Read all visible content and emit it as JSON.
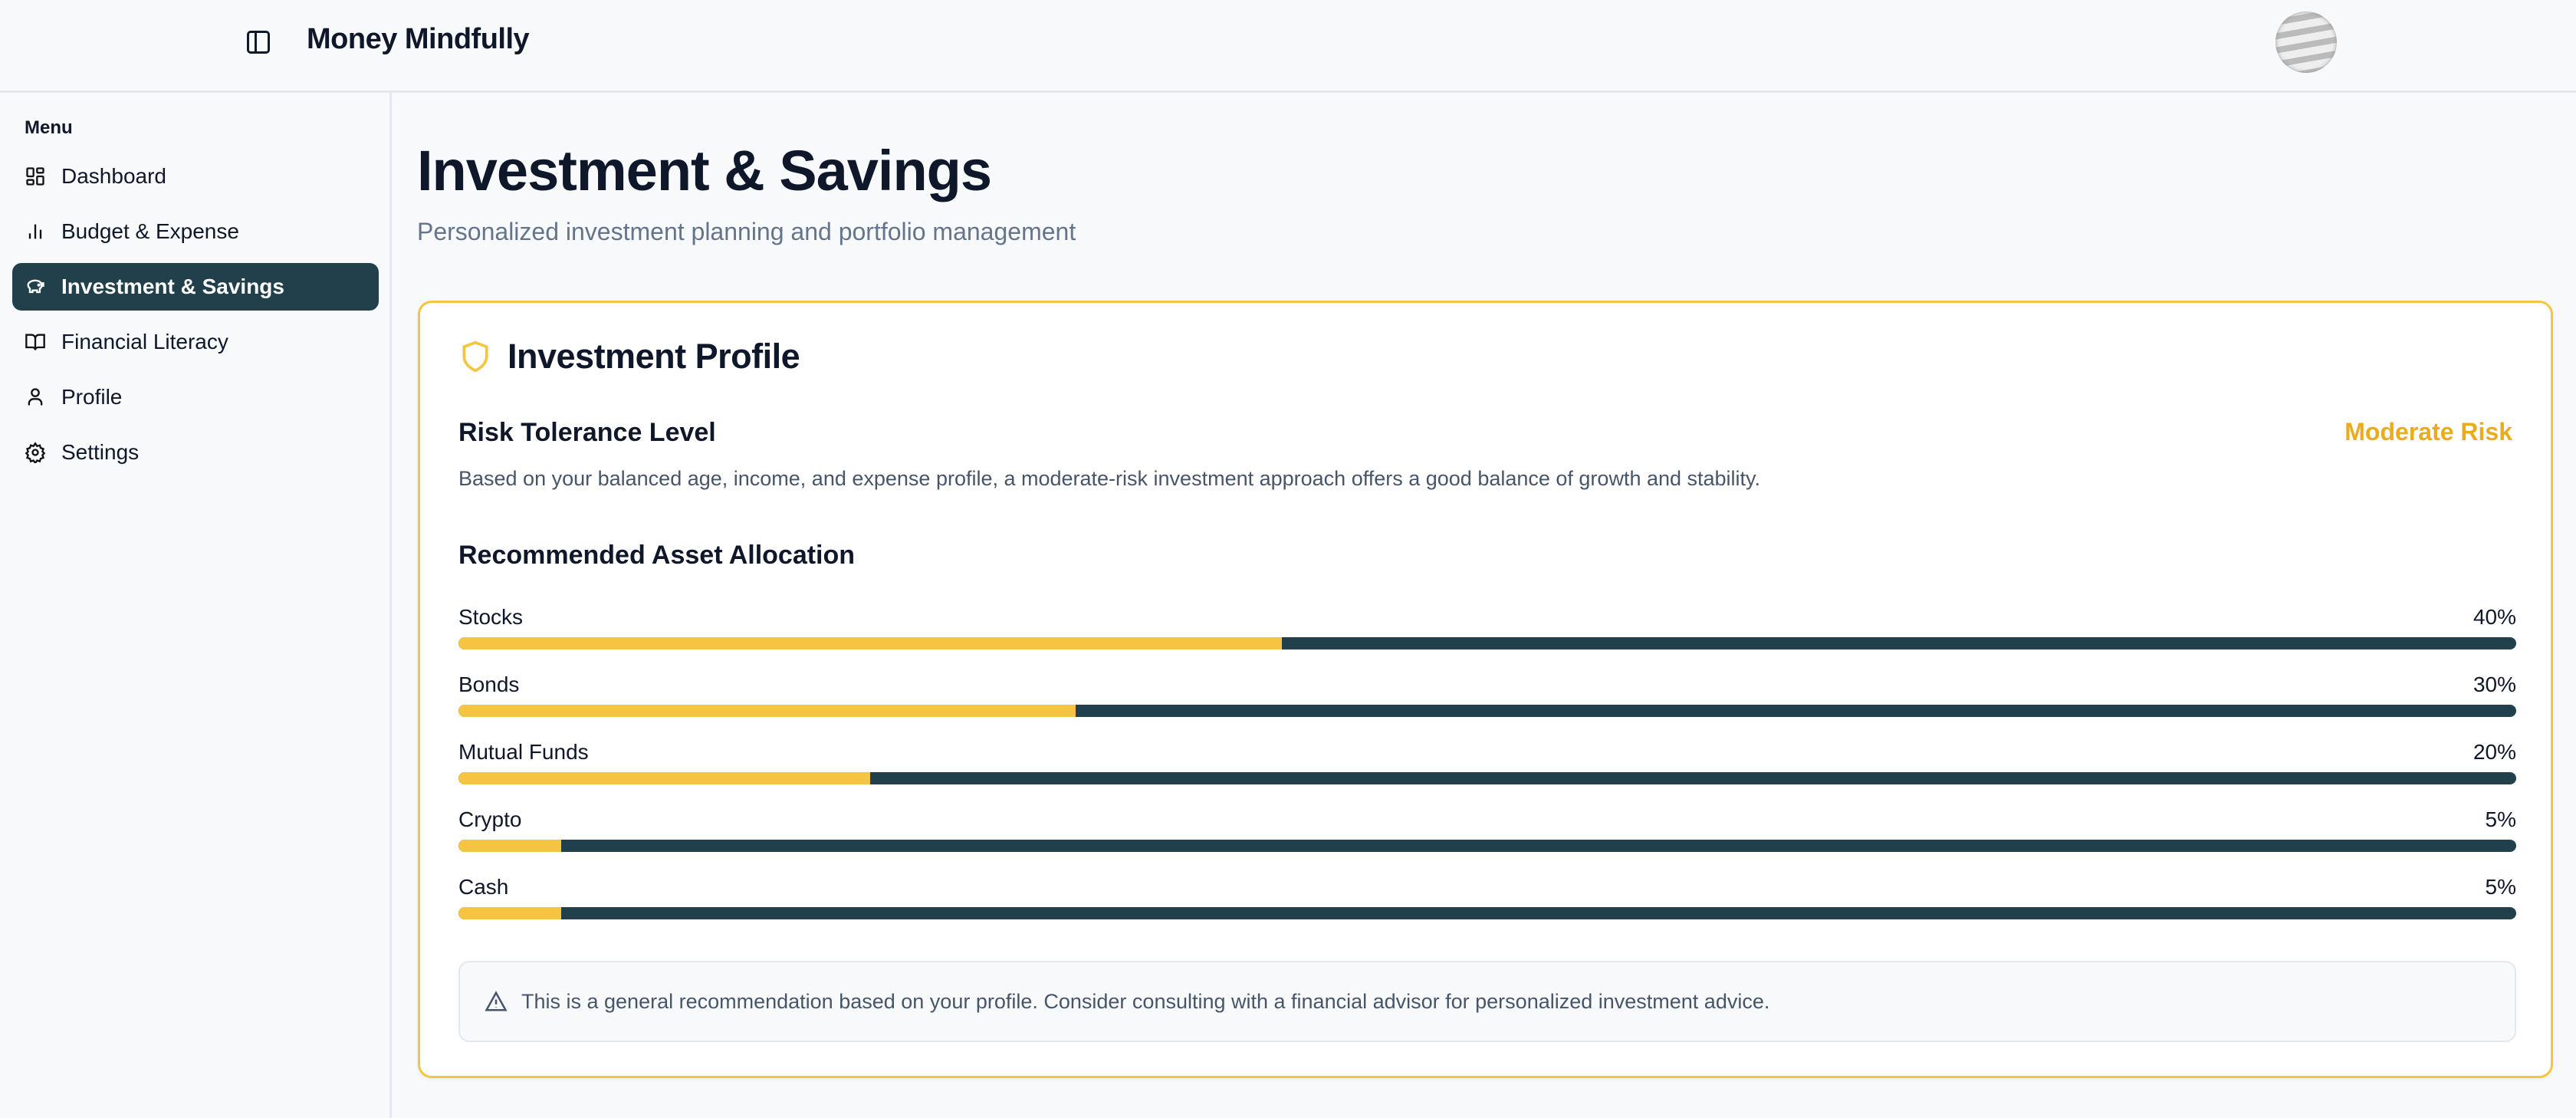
{
  "header": {
    "app_title": "Money Mindfully"
  },
  "sidebar": {
    "menu_label": "Menu",
    "items": [
      {
        "label": "Dashboard",
        "icon": "layout-dashboard-icon"
      },
      {
        "label": "Budget & Expense",
        "icon": "bar-chart-icon"
      },
      {
        "label": "Investment & Savings",
        "icon": "piggy-bank-icon",
        "active": true
      },
      {
        "label": "Financial Literacy",
        "icon": "book-open-icon"
      },
      {
        "label": "Profile",
        "icon": "user-icon"
      },
      {
        "label": "Settings",
        "icon": "gear-icon"
      }
    ]
  },
  "page": {
    "title": "Investment & Savings",
    "subtitle": "Personalized investment planning and portfolio management"
  },
  "card": {
    "title": "Investment Profile",
    "risk_heading": "Risk Tolerance Level",
    "risk_value": "Moderate Risk",
    "risk_description": "Based on your balanced age, income, and expense profile, a moderate-risk investment approach offers a good balance of growth and stability.",
    "allocation_heading": "Recommended Asset Allocation",
    "allocations": [
      {
        "label": "Stocks",
        "percent_label": "40%",
        "percent": 40
      },
      {
        "label": "Bonds",
        "percent_label": "30%",
        "percent": 30
      },
      {
        "label": "Mutual Funds",
        "percent_label": "20%",
        "percent": 20
      },
      {
        "label": "Crypto",
        "percent_label": "5%",
        "percent": 5
      },
      {
        "label": "Cash",
        "percent_label": "5%",
        "percent": 5
      }
    ],
    "note": "This is a general recommendation based on your profile. Consider consulting with a financial advisor for personalized investment advice."
  },
  "colors": {
    "accent": "#f5c542",
    "primary": "#21404b",
    "risk": "#e9ac1c"
  }
}
